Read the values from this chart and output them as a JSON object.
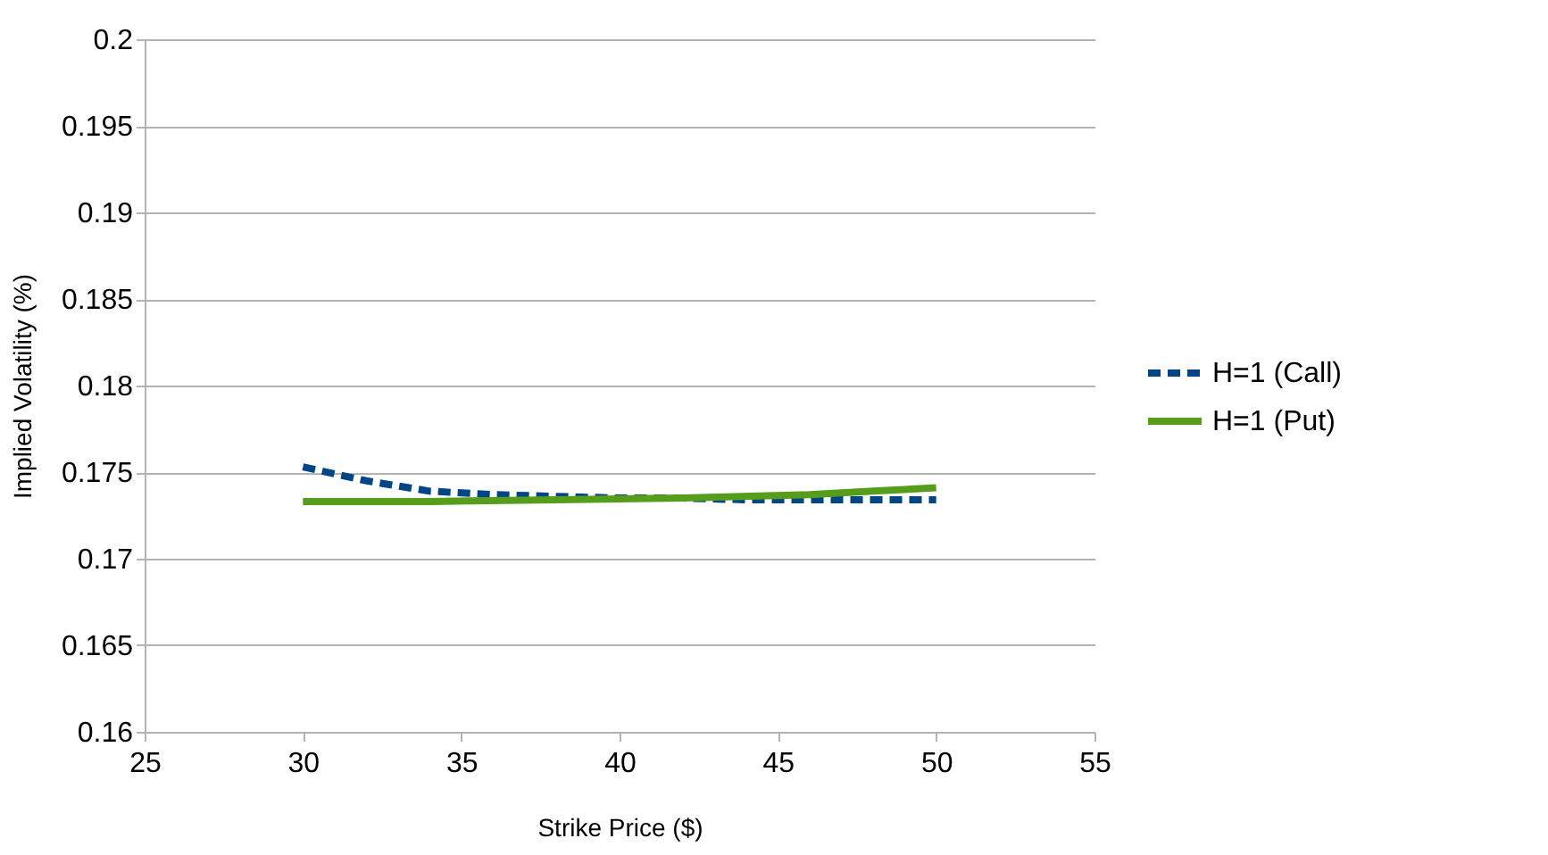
{
  "chart_data": {
    "type": "line",
    "xlabel": "Strike Price ($)",
    "ylabel": "Implied Volatility (%)",
    "xlim": [
      25,
      55
    ],
    "xticks": [
      25,
      30,
      35,
      40,
      45,
      50,
      55
    ],
    "ylim": [
      0.16,
      0.2
    ],
    "yticks": [
      0.16,
      0.165,
      0.17,
      0.175,
      0.18,
      0.185,
      0.19,
      0.195,
      0.2
    ],
    "grid": "y",
    "legend": "right",
    "marker": "none",
    "series": [
      {
        "name": "H=1 (Call)",
        "color": "#004586",
        "line_style": "dashed",
        "x": [
          30,
          32,
          34,
          36,
          38,
          40,
          42,
          44,
          46,
          48,
          50
        ],
        "values": [
          0.1753,
          0.1745,
          0.1739,
          0.1737,
          0.1736,
          0.1735,
          0.1735,
          0.1734,
          0.1734,
          0.1734,
          0.1734
        ]
      },
      {
        "name": "H=1 (Put)",
        "color": "#579d1c",
        "line_style": "solid",
        "x": [
          30,
          34,
          38,
          42,
          46,
          48,
          50
        ],
        "values": [
          0.1733,
          0.1733,
          0.1734,
          0.1735,
          0.1737,
          0.1739,
          0.1741
        ]
      }
    ]
  }
}
